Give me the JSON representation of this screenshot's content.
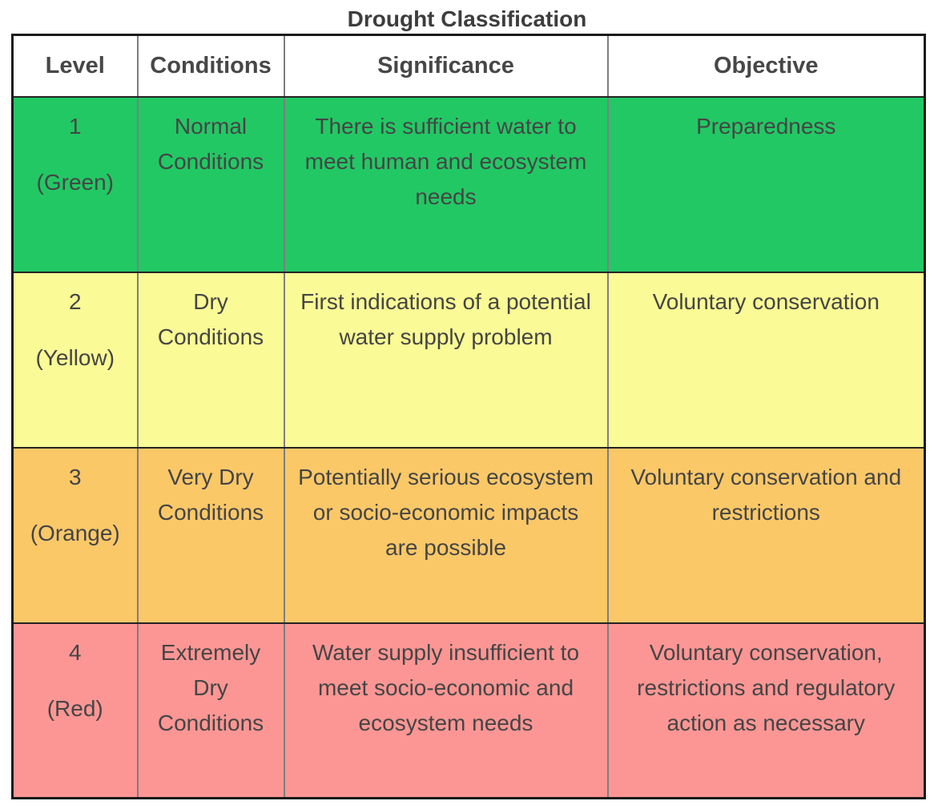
{
  "title": "Drought Classification",
  "colors": {
    "text": "#454545",
    "outer_border": "#1a1a1a",
    "row_divider": "#242424",
    "column_divider": "#7e7e7e"
  },
  "table": {
    "headers": [
      "Level",
      "Conditions",
      "Significance",
      "Objective"
    ],
    "rows": [
      {
        "level": "1",
        "color_label": "(Green)",
        "color_name": "green",
        "bg": "#22C864",
        "conditions": "Normal Conditions",
        "significance": "There is sufficient water to meet human and ecosystem needs",
        "objective": "Preparedness"
      },
      {
        "level": "2",
        "color_label": "(Yellow)",
        "color_name": "yellow",
        "bg": "#FAFA96",
        "conditions": "Dry Conditions",
        "significance": "First indications of a potential water supply problem",
        "objective": "Voluntary conservation"
      },
      {
        "level": "3",
        "color_label": "(Orange)",
        "color_name": "orange",
        "bg": "#FBC868",
        "conditions": "Very Dry Conditions",
        "significance": "Potentially serious ecosystem or socio-economic impacts are possible",
        "objective": "Voluntary conservation and restrictions"
      },
      {
        "level": "4",
        "color_label": "(Red)",
        "color_name": "red",
        "bg": "#FC9694",
        "conditions": "Extremely Dry Conditions",
        "significance": "Water supply insufficient to meet socio-economic and ecosystem needs",
        "objective": "Voluntary conservation, restrictions and regulatory action as necessary"
      }
    ]
  }
}
